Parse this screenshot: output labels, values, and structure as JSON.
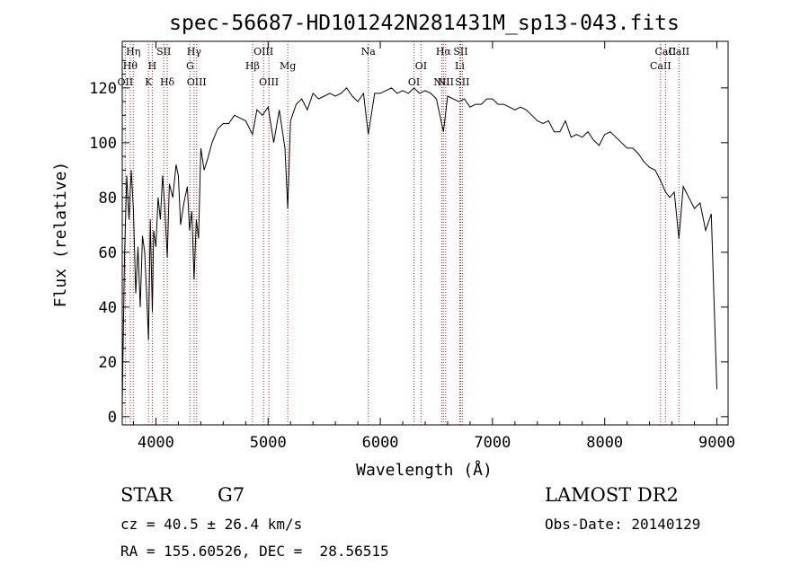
{
  "chart_data": {
    "type": "line",
    "title": "spec-56687-HD101242N281431M_sp13-043.fits",
    "xlabel": "Wavelength (Å)",
    "ylabel": "Flux (relative)",
    "xlim": [
      3700,
      9100
    ],
    "ylim": [
      -3,
      137
    ],
    "x_ticks": [
      4000,
      5000,
      6000,
      7000,
      8000,
      9000
    ],
    "y_ticks": [
      0,
      20,
      40,
      60,
      80,
      100,
      120
    ],
    "grid": false,
    "series": [
      {
        "x": [
          3700,
          3720,
          3740,
          3760,
          3780,
          3800,
          3820,
          3840,
          3860,
          3880,
          3900,
          3920,
          3934,
          3950,
          3968,
          3980,
          4000,
          4020,
          4040,
          4060,
          4080,
          4101,
          4120,
          4150,
          4180,
          4200,
          4220,
          4250,
          4280,
          4300,
          4320,
          4340,
          4360,
          4380,
          4400,
          4430,
          4460,
          4500,
          4550,
          4600,
          4650,
          4700,
          4750,
          4800,
          4861,
          4900,
          4950,
          5000,
          5050,
          5100,
          5150,
          5175,
          5200,
          5250,
          5300,
          5350,
          5400,
          5450,
          5500,
          5550,
          5600,
          5650,
          5700,
          5750,
          5800,
          5850,
          5893,
          5950,
          6000,
          6050,
          6100,
          6150,
          6200,
          6250,
          6300,
          6350,
          6400,
          6450,
          6500,
          6563,
          6600,
          6650,
          6700,
          6750,
          6800,
          6850,
          6900,
          6950,
          7000,
          7050,
          7100,
          7150,
          7200,
          7250,
          7300,
          7350,
          7400,
          7450,
          7500,
          7550,
          7600,
          7650,
          7700,
          7750,
          7800,
          7850,
          7900,
          7950,
          8000,
          8050,
          8100,
          8150,
          8200,
          8250,
          8300,
          8350,
          8400,
          8450,
          8500,
          8542,
          8580,
          8620,
          8662,
          8700,
          8750,
          8800,
          8850,
          8900,
          8950,
          9000
        ],
        "y": [
          5,
          58,
          88,
          72,
          90,
          75,
          45,
          62,
          40,
          66,
          60,
          42,
          28,
          72,
          38,
          68,
          62,
          80,
          72,
          88,
          76,
          58,
          85,
          80,
          92,
          88,
          70,
          78,
          84,
          68,
          75,
          50,
          72,
          65,
          98,
          90,
          94,
          100,
          105,
          107,
          107,
          110,
          109,
          108,
          103,
          112,
          110,
          113,
          100,
          112,
          98,
          76,
          108,
          114,
          116,
          112,
          118,
          116,
          117,
          118,
          117,
          118,
          120,
          117,
          115,
          118,
          103,
          118,
          118,
          119,
          120,
          118,
          119,
          118,
          120,
          118,
          119,
          118,
          116,
          104,
          117,
          116,
          115,
          116,
          113,
          114,
          114,
          116,
          116,
          114,
          114,
          113,
          112,
          113,
          112,
          110,
          108,
          107,
          108,
          104,
          104,
          108,
          102,
          103,
          102,
          104,
          101,
          99,
          103,
          104,
          102,
          100,
          98,
          98,
          96,
          93,
          91,
          90,
          86,
          82,
          80,
          82,
          65,
          84,
          80,
          76,
          78,
          68,
          74,
          10
        ]
      }
    ],
    "line_markers": [
      {
        "wl": 3727,
        "label": "OII",
        "row": 2
      },
      {
        "wl": 3771,
        "label": "Hθ",
        "row": 1
      },
      {
        "wl": 3798,
        "label": "Hη",
        "row": 0
      },
      {
        "wl": 3934,
        "label": "K",
        "row": 2
      },
      {
        "wl": 3968,
        "label": "H",
        "row": 1
      },
      {
        "wl": 4070,
        "label": "SII",
        "row": 0
      },
      {
        "wl": 4101,
        "label": "Hδ",
        "row": 2
      },
      {
        "wl": 4304,
        "label": "G",
        "row": 1
      },
      {
        "wl": 4340,
        "label": "Hγ",
        "row": 0
      },
      {
        "wl": 4363,
        "label": "OIII",
        "row": 2
      },
      {
        "wl": 4861,
        "label": "Hβ",
        "row": 1
      },
      {
        "wl": 4959,
        "label": "OIII",
        "row": 0
      },
      {
        "wl": 5007,
        "label": "OIII",
        "row": 2
      },
      {
        "wl": 5175,
        "label": "Mg",
        "row": 1
      },
      {
        "wl": 5893,
        "label": "Na",
        "row": 0
      },
      {
        "wl": 6300,
        "label": "OI",
        "row": 2
      },
      {
        "wl": 6363,
        "label": "OI",
        "row": 1
      },
      {
        "wl": 6548,
        "label": "NII",
        "row": 2
      },
      {
        "wl": 6563,
        "label": "Hα",
        "row": 0
      },
      {
        "wl": 6583,
        "label": "NII",
        "row": 2
      },
      {
        "wl": 6708,
        "label": "Li",
        "row": 1
      },
      {
        "wl": 6716,
        "label": "SII",
        "row": 0
      },
      {
        "wl": 6731,
        "label": "SII",
        "row": 2
      },
      {
        "wl": 8498,
        "label": "CaII",
        "row": 1
      },
      {
        "wl": 8542,
        "label": "CaII",
        "row": 0
      },
      {
        "wl": 8662,
        "label": "CaII",
        "row": 0
      }
    ]
  },
  "info": {
    "object_class": "STAR",
    "subclass": "G7",
    "redshift": "cz = 40.5 ± 26.4 km/s",
    "coords": "RA = 155.60526, DEC =  28.56515",
    "survey": "LAMOST DR2",
    "obs_date": "Obs-Date: 20140129"
  }
}
